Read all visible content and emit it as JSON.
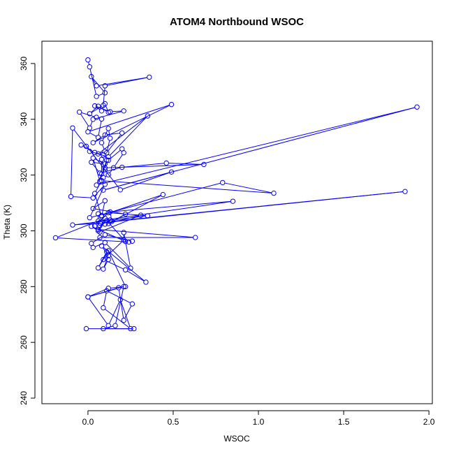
{
  "chart_data": {
    "type": "line",
    "title": "ATOM4 Northbound WSOC",
    "xlabel": "WSOC",
    "ylabel": "Theta (K)",
    "xlim": [
      -0.27,
      2.02
    ],
    "ylim": [
      238,
      368
    ],
    "x_ticks": [
      "0.0",
      "0.5",
      "1.0",
      "1.5",
      "2.0"
    ],
    "y_ticks": [
      "240",
      "260",
      "280",
      "300",
      "320",
      "340",
      "360"
    ],
    "grid": false,
    "marker": "open-circle",
    "series": [
      {
        "color": "#0000ff",
        "x": [
          0.0,
          0.01,
          0.05,
          0.1,
          0.02,
          0.05,
          0.36,
          0.1,
          0.09,
          0.01,
          0.06,
          0.12,
          0.1,
          0.08,
          0.04,
          0.13,
          0.21,
          0.03,
          0.01,
          -0.05,
          0.05,
          0.08,
          0.06,
          0.0,
          0.49,
          0.03,
          0.1,
          0.2,
          0.11,
          0.13,
          0.12,
          0.08,
          0.1,
          0.06,
          0.35,
          0.12,
          0.01,
          -0.01,
          -0.04,
          0.04,
          0.09,
          0.12,
          0.2,
          0.21,
          0.15,
          0.12,
          0.09,
          0.08,
          0.08,
          0.1,
          0.11,
          0.07,
          0.03,
          0.1,
          0.02,
          0.07,
          0.2,
          0.46,
          0.68,
          0.1,
          0.05,
          1.93,
          0.09,
          0.49,
          0.19,
          -0.09,
          -0.1,
          0.03,
          0.1,
          0.01,
          0.79,
          1.09,
          0.08,
          0.04,
          0.08,
          0.1,
          0.03,
          0.22,
          0.12,
          0.44,
          0.08,
          0.06,
          0.06,
          0.85,
          0.13,
          0.14,
          1.86,
          0.07,
          -0.09,
          0.35,
          0.12,
          0.04,
          0.07,
          0.13,
          0.1,
          0.31,
          0.07,
          0.07,
          0.63,
          0.06,
          0.11,
          0.22,
          0.02,
          0.06,
          0.1,
          -0.19,
          0.24,
          0.26,
          0.1,
          0.02,
          0.03,
          0.1,
          0.25,
          0.21,
          0.21,
          0.09,
          0.22,
          0.34,
          0.08,
          0.12,
          0.09,
          0.12,
          0.11,
          0.06,
          0.12,
          0.22,
          0.12,
          0.0,
          0.18,
          0.21,
          0.26,
          0.11,
          0.09,
          0.25,
          0.19,
          0.12,
          0.0,
          0.21,
          0.16,
          0.09,
          0.27,
          -0.01
        ],
        "y": [
          361.3,
          358.8,
          348.2,
          349.5,
          355.3,
          352.0,
          355.1,
          352.0,
          345.0,
          342.0,
          344.7,
          342.5,
          345.6,
          343.0,
          344.8,
          342.7,
          343.0,
          340.0,
          336.9,
          342.6,
          340.7,
          340.1,
          333.5,
          335.5,
          345.3,
          331.6,
          334.4,
          335.1,
          328.0,
          333.2,
          336.7,
          331.6,
          328.5,
          327.6,
          341.2,
          326.5,
          328.5,
          330.3,
          330.8,
          328.1,
          327.2,
          325.3,
          329.4,
          328.0,
          322.6,
          320.1,
          319.1,
          320.4,
          325.6,
          321.9,
          325.4,
          317.8,
          326.1,
          324.0,
          324.6,
          320.7,
          322.8,
          324.3,
          323.8,
          322.6,
          316.4,
          344.4,
          314.6,
          321.1,
          314.7,
          336.9,
          312.3,
          311.8,
          316.7,
          304.7,
          317.3,
          313.5,
          318.0,
          313.4,
          305.1,
          310.8,
          308.0,
          306.0,
          302.6,
          313.0,
          305.5,
          306.1,
          303.5,
          310.6,
          306.8,
          303.4,
          314.1,
          302.8,
          302.1,
          305.4,
          306.5,
          301.7,
          301.8,
          303.9,
          302.4,
          305.6,
          299.6,
          297.6,
          297.6,
          300.5,
          303.7,
          296.2,
          301.6,
          300.0,
          304.5,
          297.5,
          296.0,
          296.3,
          298.6,
          295.5,
          294.0,
          295.8,
          286.6,
          299.4,
          296.7,
          289.7,
          286.0,
          281.6,
          294.6,
          291.1,
          286.3,
          289.7,
          292.5,
          286.7,
          292.9,
          280.0,
          279.4,
          276.3,
          279.6,
          267.9,
          273.8,
          278.5,
          272.4,
          264.9,
          275.3,
          266.0,
          276.3,
          280.0,
          266.0,
          264.9,
          264.9,
          264.9
        ]
      }
    ]
  }
}
